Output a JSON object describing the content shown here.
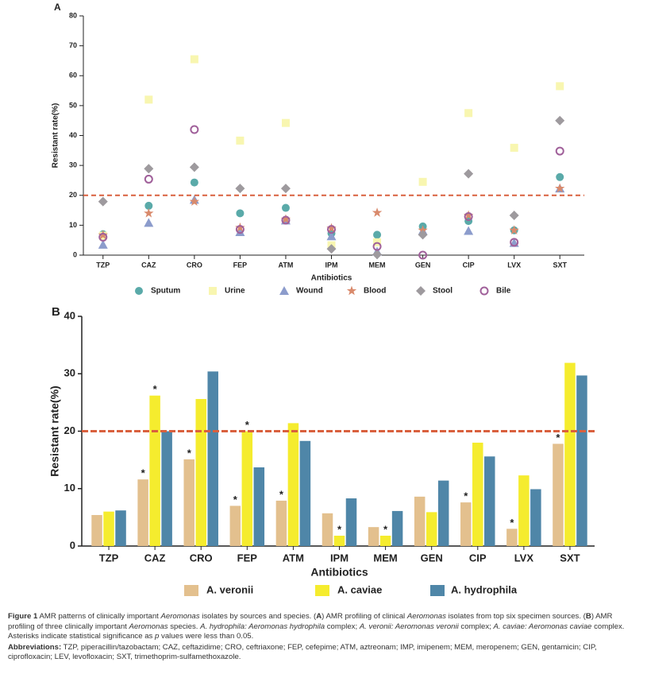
{
  "chart_data": [
    {
      "type": "scatter",
      "panel_label": "A",
      "categories": [
        "TZP",
        "CAZ",
        "CRO",
        "FEP",
        "ATM",
        "IPM",
        "MEM",
        "GEN",
        "CIP",
        "LVX",
        "SXT"
      ],
      "series": [
        {
          "name": "Sputum",
          "color": "#5aaaa9",
          "marker": "circle",
          "values": [
            7,
            16.5,
            24.3,
            14,
            15.8,
            7.3,
            6.8,
            9.6,
            11.4,
            8.3,
            26.1
          ]
        },
        {
          "name": "Urine",
          "color": "#f8f6b0",
          "marker": "square",
          "values": [
            6.5,
            52,
            65.5,
            38.3,
            44.2,
            3.3,
            4.3,
            24.5,
            47.5,
            35.9,
            56.5
          ]
        },
        {
          "name": "Wound",
          "color": "#8c9ccc",
          "marker": "triangle",
          "values": [
            3.5,
            10.8,
            18.5,
            7.7,
            11.6,
            6.3,
            1.2,
            8.1,
            8.1,
            4.1,
            22.3
          ]
        },
        {
          "name": "Blood",
          "color": "#d98a6c",
          "marker": "star",
          "values": [
            6.7,
            14,
            17.9,
            9.2,
            12,
            9,
            14.2,
            8.3,
            13.3,
            8.3,
            22.3
          ]
        },
        {
          "name": "Stool",
          "color": "#9e9a9e",
          "marker": "diamond",
          "values": [
            17.9,
            28.9,
            29.4,
            22.3,
            22.3,
            2.1,
            0.2,
            6.8,
            27.2,
            13.3,
            45
          ]
        },
        {
          "name": "Bile",
          "color": "#a0609a",
          "marker": "open-circle",
          "values": [
            6,
            25.4,
            42,
            8.6,
            11.7,
            8.6,
            2.9,
            0,
            12.9,
            4.3,
            34.8
          ]
        }
      ],
      "ylim": [
        0,
        80
      ],
      "yticks": [
        0,
        10,
        20,
        30,
        40,
        50,
        60,
        70,
        80
      ],
      "xlabel": "Antibiotics",
      "ylabel": "Resistant rate(%)",
      "reference_line": 20,
      "reference_color": "#d9603e"
    },
    {
      "type": "bar",
      "panel_label": "B",
      "categories": [
        "TZP",
        "CAZ",
        "CRO",
        "FEP",
        "ATM",
        "IPM",
        "MEM",
        "GEN",
        "CIP",
        "LVX",
        "SXT"
      ],
      "series": [
        {
          "name": "A. veronii",
          "color": "#e3c08e",
          "values": [
            5.4,
            11.6,
            15.1,
            7,
            7.9,
            5.7,
            3.3,
            8.6,
            7.6,
            3,
            17.8
          ],
          "markers": [
            null,
            "*",
            "*",
            "*",
            "*",
            null,
            null,
            null,
            "*",
            "*",
            "*"
          ]
        },
        {
          "name": "A. caviae",
          "color": "#f5ec2e",
          "values": [
            6,
            26.2,
            25.6,
            20,
            21.4,
            1.8,
            1.8,
            5.9,
            18,
            12.3,
            31.9
          ],
          "markers": [
            null,
            "*",
            null,
            "*",
            null,
            "*",
            "*",
            null,
            null,
            null,
            null
          ]
        },
        {
          "name": "A. hydrophila",
          "color": "#4f86a8",
          "values": [
            6.2,
            20,
            30.4,
            13.7,
            18.3,
            8.3,
            6.1,
            11.4,
            15.6,
            9.9,
            29.7
          ]
        }
      ],
      "ylim": [
        0,
        40
      ],
      "yticks": [
        0,
        10,
        20,
        30,
        40
      ],
      "xlabel": "Antibiotics",
      "ylabel": "Resistant rate(%)",
      "reference_line": 20,
      "reference_color": "#d9603e"
    }
  ],
  "caption": [
    [
      {
        "text": "Figure 1",
        "bold": true
      },
      {
        "text": " AMR patterns of clinically important "
      },
      {
        "text": "Aeromonas",
        "italic": true
      },
      {
        "text": " isolates by sources and species. ("
      },
      {
        "text": "A",
        "bold": true
      },
      {
        "text": ") AMR profiling of clinical "
      },
      {
        "text": "Aeromonas",
        "italic": true
      },
      {
        "text": " isolates from top six specimen sources. ("
      },
      {
        "text": "B",
        "bold": true
      },
      {
        "text": ") AMR profiling of three clinically important "
      },
      {
        "text": "Aeromonas",
        "italic": true
      },
      {
        "text": " species. "
      },
      {
        "text": "A. hydrophila: Aeromonas hydrophila",
        "italic": true
      },
      {
        "text": " complex; "
      },
      {
        "text": "A. veronii: Aeromonas veronii",
        "italic": true
      },
      {
        "text": " complex; "
      },
      {
        "text": "A. caviae: Aeromonas caviae",
        "italic": true
      },
      {
        "text": " complex. Asterisks indicate statistical significance as "
      },
      {
        "text": "p",
        "italic": true
      },
      {
        "text": " values were less than 0.05."
      }
    ],
    [
      {
        "text": "Abbreviations:",
        "bold": true
      },
      {
        "text": " TZP, piperacillin/tazobactam; CAZ, ceftazidime; CRO, ceftriaxone; FEP, cefepime; ATM, aztreonam; IMP, imipenem; MEM, meropenem; GEN, gentamicin; CIP, ciprofloxacin; LEV, levofloxacin; SXT, trimethoprim-sulfamethoxazole."
      }
    ]
  ]
}
